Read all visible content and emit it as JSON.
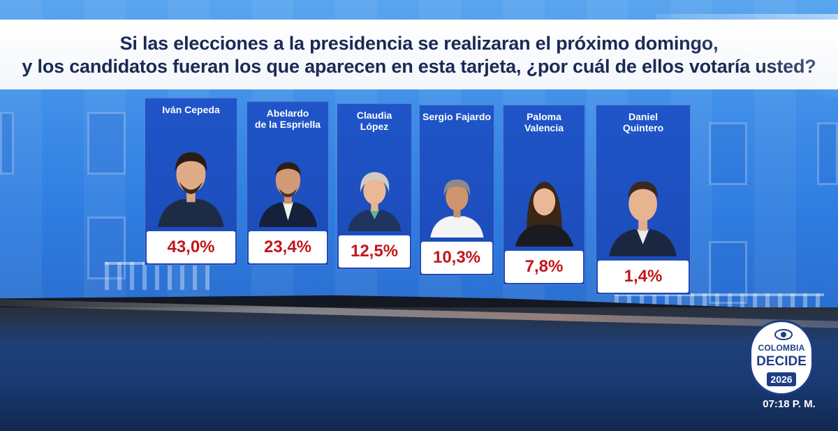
{
  "question": {
    "line1": "Si las elecciones a la presidencia se realizaran el próximo domingo,",
    "line2": "y los candidatos fueran los que aparecen en esta tarjeta, ¿por cuál de ellos votaría usted?"
  },
  "candidates": [
    {
      "name": "Iván Cepeda",
      "value": "43,0%",
      "pct": 43.0
    },
    {
      "name": "Abelardo\nde la Espriella",
      "value": "23,4%",
      "pct": 23.4
    },
    {
      "name": "Claudia\nLópez",
      "value": "12,5%",
      "pct": 12.5
    },
    {
      "name": "Sergio Fajardo",
      "value": "10,3%",
      "pct": 10.3
    },
    {
      "name": "Paloma\nValencia",
      "value": "7,8%",
      "pct": 7.8
    },
    {
      "name": "Daniel\nQuintero",
      "value": "1,4%",
      "pct": 1.4
    }
  ],
  "logo": {
    "line1": "COLOMBIA",
    "line2": "DECIDE",
    "year": "2026"
  },
  "clock": "07:18 P. M.",
  "colors": {
    "card_blue": "#1f55c9",
    "percent_red": "#c2161b",
    "question_text": "#1a2a55",
    "logo_blue": "#1d3e86"
  }
}
